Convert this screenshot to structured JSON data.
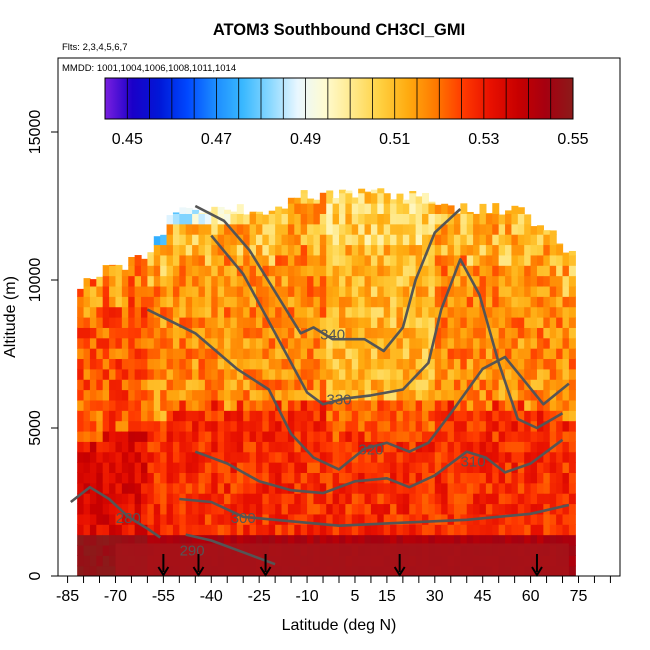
{
  "chart_data": {
    "type": "heatmap",
    "title": "ATOM3 Southbound CH3Cl_GMI",
    "subtitle_flights": "Flts: 2,3,4,5,6,7",
    "subtitle_dates": "MMDD: 1001,1004,1006,1008,1011,1014",
    "xlabel": "Latitude (deg N)",
    "ylabel": "Altitude (m)",
    "xlim": [
      -88,
      88
    ],
    "ylim": [
      0,
      17500
    ],
    "x_ticks": [
      "-85",
      "-70",
      "-55",
      "-40",
      "-25",
      "-10",
      "5",
      "15",
      "30",
      "45",
      "60",
      "75"
    ],
    "x_tick_values": [
      -85,
      -70,
      -55,
      -40,
      -25,
      -10,
      5,
      15,
      30,
      45,
      60,
      75
    ],
    "y_ticks": [
      "0",
      "5000",
      "10000",
      "15000"
    ],
    "y_tick_values": [
      0,
      5000,
      10000,
      15000
    ],
    "grid": false,
    "colorbar": {
      "min": 0.445,
      "max": 0.55,
      "tick_labels": [
        "0.45",
        "0.47",
        "0.49",
        "0.51",
        "0.53",
        "0.55"
      ],
      "tick_values": [
        0.45,
        0.47,
        0.49,
        0.51,
        0.53,
        0.55
      ],
      "colors": [
        "#7a1fe0",
        "#1a00c8",
        "#0018d8",
        "#0048ff",
        "#1c8cff",
        "#39b8ff",
        "#8ad8ff",
        "#e9f7ff",
        "#fffbd0",
        "#ffe98a",
        "#ffd040",
        "#ffab10",
        "#ff7a00",
        "#ff3a00",
        "#e81000",
        "#c80000",
        "#a60010",
        "#8c1a1a"
      ]
    },
    "column_samples": {
      "x": [
        -80,
        -75,
        -70,
        -65,
        -60,
        -56,
        -52,
        -48,
        -44,
        -40,
        -35,
        -30,
        -25,
        -20,
        -15,
        -10,
        -5,
        0,
        5,
        10,
        15,
        20,
        25,
        30,
        35,
        40,
        45,
        50,
        55,
        60,
        65,
        70
      ],
      "top": [
        9900,
        10300,
        10500,
        10600,
        10900,
        11700,
        12400,
        12400,
        12400,
        12400,
        12400,
        12400,
        12400,
        12400,
        12900,
        12900,
        12900,
        12900,
        12900,
        12900,
        12900,
        12900,
        12900,
        12400,
        12400,
        12400,
        12400,
        12400,
        12400,
        12000,
        11600,
        11100
      ],
      "low_level": 0.54,
      "mid_level": 0.525,
      "upper_level": 0.515,
      "tropopause_level": 0.49
    },
    "contours": [
      {
        "label": "280",
        "points": [
          [
            -84,
            2500
          ],
          [
            -78,
            3000
          ],
          [
            -72,
            2600
          ],
          [
            -66,
            2000
          ],
          [
            -60,
            1600
          ],
          [
            -56,
            1300
          ]
        ]
      },
      {
        "label": "290",
        "points": [
          [
            -48,
            1400
          ],
          [
            -40,
            1200
          ],
          [
            -30,
            800
          ],
          [
            -20,
            400
          ]
        ],
        "label_at": [
          -46,
          900
        ]
      },
      {
        "label": "300",
        "points": [
          [
            -50,
            2600
          ],
          [
            -40,
            2500
          ],
          [
            -30,
            2000
          ],
          [
            -20,
            1900
          ],
          [
            0,
            1700
          ],
          [
            20,
            1800
          ],
          [
            40,
            1900
          ],
          [
            60,
            2100
          ],
          [
            72,
            2400
          ]
        ],
        "label_at": [
          -30,
          2000
        ]
      },
      {
        "label": "310",
        "points": [
          [
            -45,
            4200
          ],
          [
            -35,
            3800
          ],
          [
            -25,
            3200
          ],
          [
            -15,
            2900
          ],
          [
            -5,
            2800
          ],
          [
            5,
            3200
          ],
          [
            15,
            3300
          ],
          [
            22,
            3000
          ],
          [
            30,
            3400
          ],
          [
            40,
            4200
          ],
          [
            46,
            4000
          ],
          [
            52,
            3500
          ],
          [
            60,
            3800
          ],
          [
            70,
            4600
          ]
        ],
        "label_at": [
          42,
          3900
        ]
      },
      {
        "label": "320",
        "points": [
          [
            -60,
            9000
          ],
          [
            -45,
            8200
          ],
          [
            -32,
            7000
          ],
          [
            -22,
            6300
          ],
          [
            -15,
            4800
          ],
          [
            -8,
            4000
          ],
          [
            0,
            3600
          ],
          [
            8,
            4300
          ],
          [
            15,
            4500
          ],
          [
            22,
            4200
          ],
          [
            28,
            4500
          ],
          [
            35,
            5500
          ],
          [
            45,
            7000
          ],
          [
            52,
            7400
          ],
          [
            58,
            6600
          ],
          [
            64,
            5800
          ],
          [
            72,
            6500
          ]
        ],
        "label_at": [
          10,
          4300
        ]
      },
      {
        "label": "330",
        "points": [
          [
            -40,
            11500
          ],
          [
            -30,
            10200
          ],
          [
            -22,
            8600
          ],
          [
            -10,
            6200
          ],
          [
            -5,
            5800
          ],
          [
            2,
            6000
          ],
          [
            10,
            6100
          ],
          [
            20,
            6300
          ],
          [
            28,
            7200
          ],
          [
            32,
            9000
          ],
          [
            38,
            10700
          ],
          [
            44,
            9500
          ],
          [
            50,
            7200
          ],
          [
            56,
            5300
          ],
          [
            62,
            5000
          ],
          [
            70,
            5500
          ]
        ],
        "label_at": [
          0,
          6000
        ]
      },
      {
        "label": "340",
        "points": [
          [
            -45,
            12500
          ],
          [
            -36,
            12000
          ],
          [
            -28,
            11000
          ],
          [
            -20,
            9600
          ],
          [
            -12,
            8200
          ],
          [
            -8,
            8400
          ],
          [
            -2,
            8000
          ],
          [
            8,
            8000
          ],
          [
            14,
            7600
          ],
          [
            20,
            8400
          ],
          [
            24,
            10000
          ],
          [
            30,
            11600
          ],
          [
            38,
            12400
          ]
        ],
        "label_at": [
          -2,
          8200
        ]
      }
    ],
    "flight_markers": [
      -55,
      -44,
      -23,
      19,
      62
    ]
  }
}
